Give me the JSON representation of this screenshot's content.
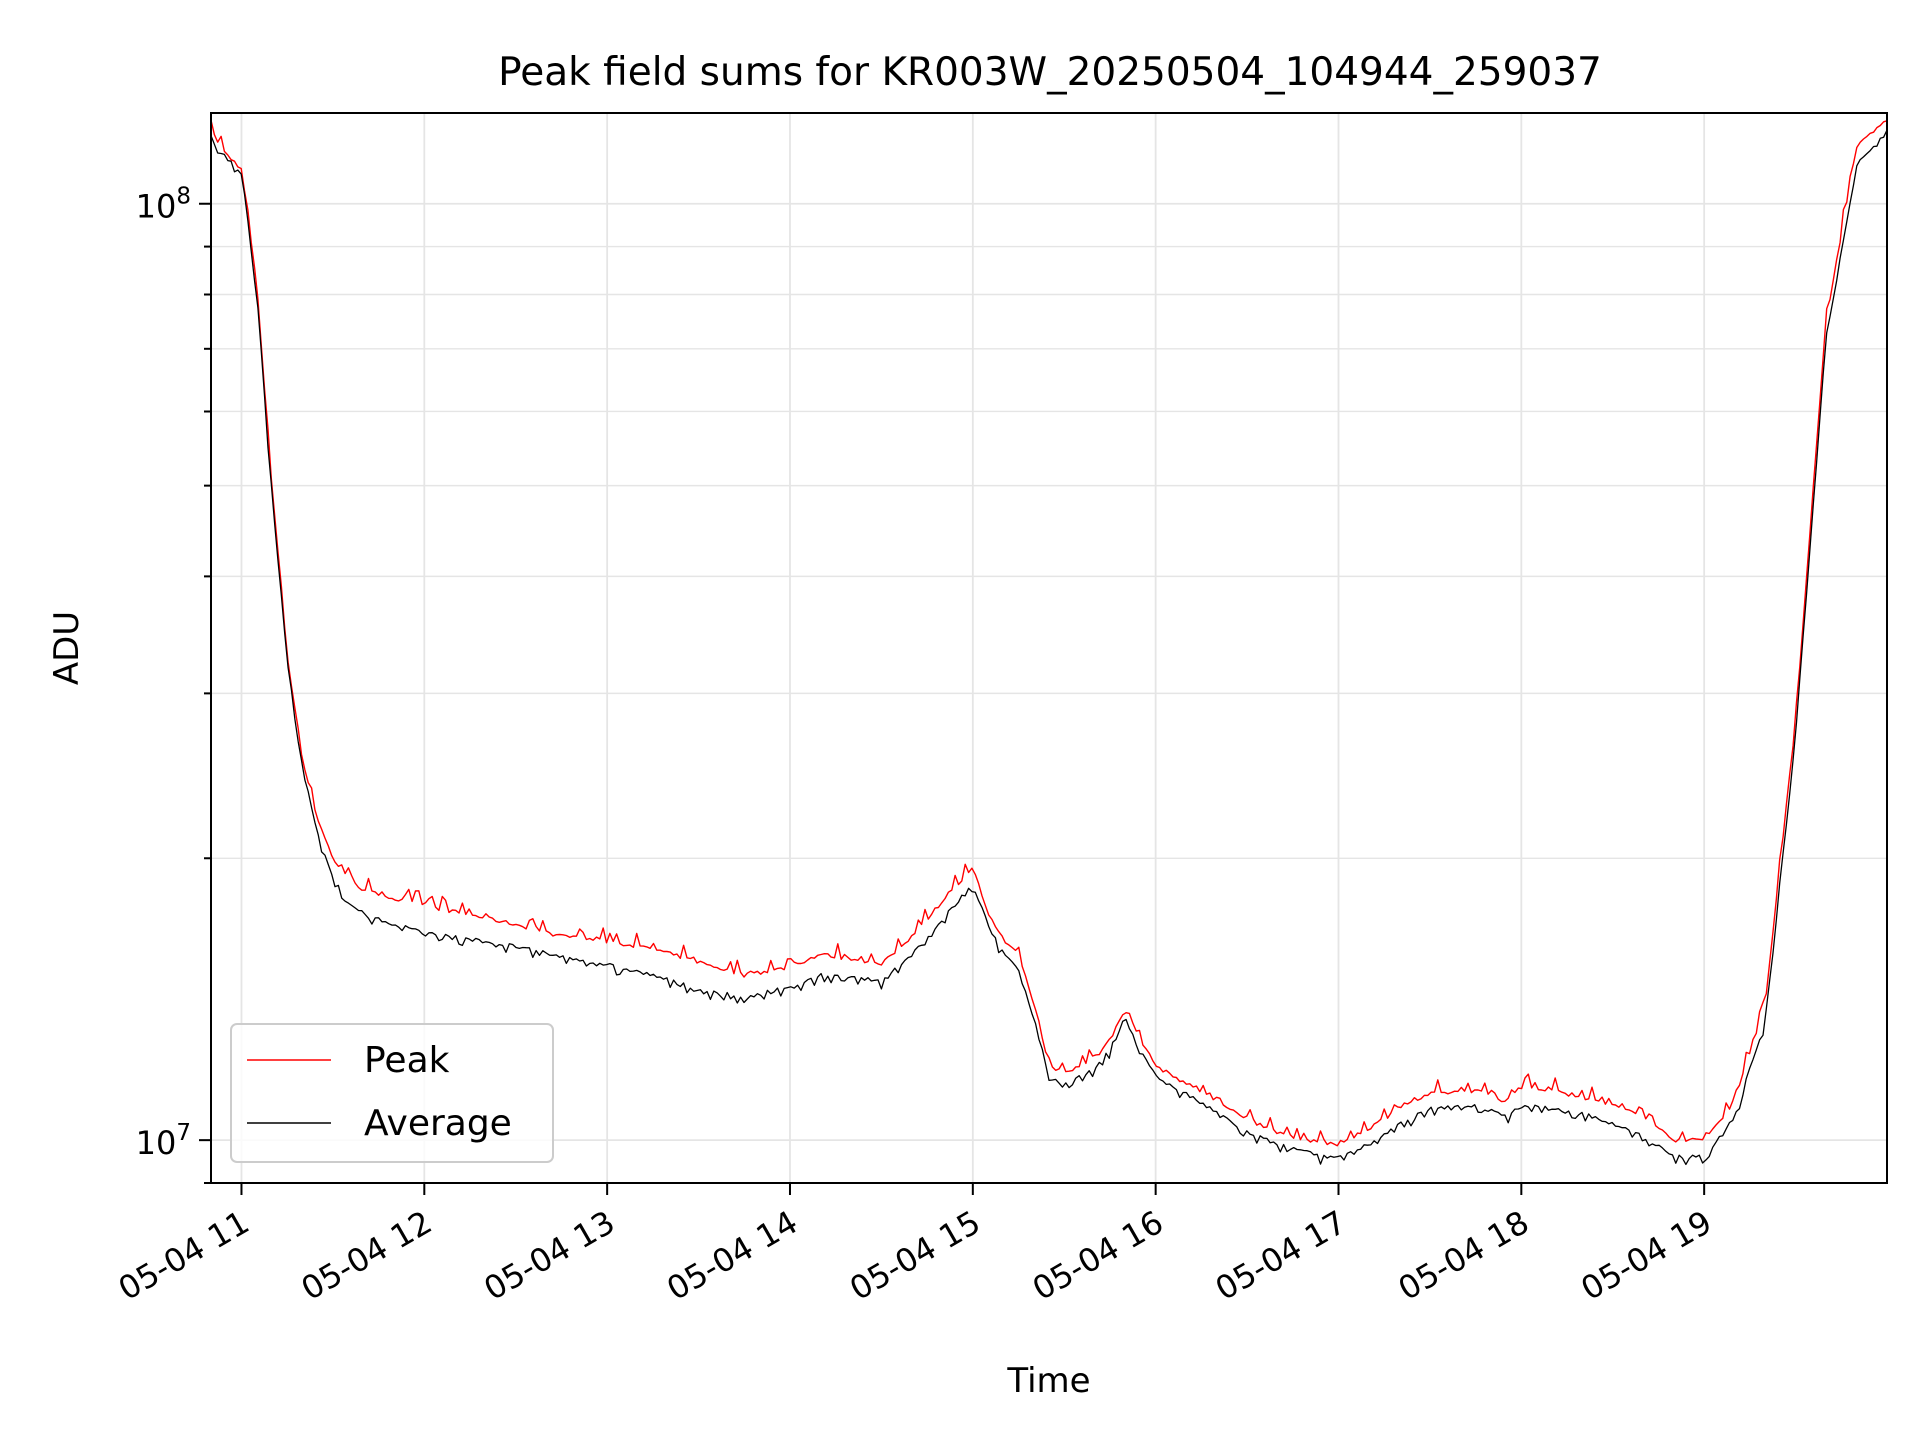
{
  "chart_data": {
    "type": "line",
    "title": "Peak field sums for KR003W_20250504_104944_259037",
    "xlabel": "Time",
    "ylabel": "ADU",
    "y_scale": "log",
    "ylim": [
      9000000,
      125000000
    ],
    "xlim": [
      "05-04 10:50",
      "05-04 20:00"
    ],
    "grid": true,
    "legend_position": "lower-left",
    "x_ticks": [
      "05-04 11",
      "05-04 12",
      "05-04 13",
      "05-04 14",
      "05-04 15",
      "05-04 16",
      "05-04 17",
      "05-04 18",
      "05-04 19"
    ],
    "y_ticks": [
      {
        "base": "10",
        "exp": "7",
        "value": 10000000
      },
      {
        "base": "10",
        "exp": "8",
        "value": 100000000
      }
    ],
    "x_tick_format": "MM-DD HH",
    "series": [
      {
        "name": "Peak",
        "color": "#ff0000",
        "x": [
          "05-04 10:50",
          "05-04 10:55",
          "05-04 11:00",
          "05-04 11:05",
          "05-04 11:10",
          "05-04 11:15",
          "05-04 11:20",
          "05-04 11:25",
          "05-04 11:30",
          "05-04 11:35",
          "05-04 11:40",
          "05-04 11:45",
          "05-04 11:50",
          "05-04 12:00",
          "05-04 12:15",
          "05-04 12:30",
          "05-04 12:45",
          "05-04 13:00",
          "05-04 13:15",
          "05-04 13:30",
          "05-04 13:45",
          "05-04 14:00",
          "05-04 14:10",
          "05-04 14:20",
          "05-04 14:30",
          "05-04 14:40",
          "05-04 14:50",
          "05-04 15:00",
          "05-04 15:05",
          "05-04 15:10",
          "05-04 15:15",
          "05-04 15:20",
          "05-04 15:25",
          "05-04 15:30",
          "05-04 15:40",
          "05-04 15:45",
          "05-04 15:50",
          "05-04 15:55",
          "05-04 16:00",
          "05-04 16:10",
          "05-04 16:20",
          "05-04 16:30",
          "05-04 16:40",
          "05-04 16:50",
          "05-04 16:55",
          "05-04 17:00",
          "05-04 17:10",
          "05-04 17:20",
          "05-04 17:30",
          "05-04 17:45",
          "05-04 17:55",
          "05-04 18:00",
          "05-04 18:10",
          "05-04 18:20",
          "05-04 18:30",
          "05-04 18:40",
          "05-04 18:50",
          "05-04 19:00",
          "05-04 19:10",
          "05-04 19:20",
          "05-04 19:30",
          "05-04 19:40",
          "05-04 19:50",
          "05-04 20:00"
        ],
        "values": [
          119000000,
          113000000,
          109000000,
          82000000,
          50000000,
          33000000,
          25500000,
          22000000,
          20000000,
          19000000,
          18500000,
          18300000,
          18100000,
          17800000,
          17400000,
          17000000,
          16500000,
          16300000,
          16000000,
          15500000,
          15000000,
          15300000,
          15800000,
          15600000,
          15400000,
          16500000,
          18000000,
          19500000,
          17500000,
          16300000,
          15800000,
          14000000,
          12000000,
          11800000,
          12200000,
          12800000,
          13800000,
          12800000,
          12000000,
          11500000,
          11000000,
          10500000,
          10200000,
          10000000,
          9900000,
          9900000,
          10300000,
          10800000,
          11200000,
          11300000,
          11000000,
          11400000,
          11300000,
          11100000,
          10900000,
          10600000,
          10000000,
          10000000,
          11000000,
          14000000,
          28000000,
          75000000,
          115000000,
          123000000
        ]
      },
      {
        "name": "Average",
        "color": "#000000",
        "x": [
          "05-04 10:50",
          "05-04 10:55",
          "05-04 11:00",
          "05-04 11:05",
          "05-04 11:10",
          "05-04 11:15",
          "05-04 11:20",
          "05-04 11:25",
          "05-04 11:30",
          "05-04 11:35",
          "05-04 11:40",
          "05-04 11:45",
          "05-04 11:50",
          "05-04 12:00",
          "05-04 12:15",
          "05-04 12:30",
          "05-04 12:45",
          "05-04 13:00",
          "05-04 13:15",
          "05-04 13:30",
          "05-04 13:45",
          "05-04 14:00",
          "05-04 14:10",
          "05-04 14:20",
          "05-04 14:30",
          "05-04 14:40",
          "05-04 14:50",
          "05-04 15:00",
          "05-04 15:05",
          "05-04 15:10",
          "05-04 15:15",
          "05-04 15:20",
          "05-04 15:25",
          "05-04 15:30",
          "05-04 15:40",
          "05-04 15:45",
          "05-04 15:50",
          "05-04 15:55",
          "05-04 16:00",
          "05-04 16:10",
          "05-04 16:20",
          "05-04 16:30",
          "05-04 16:40",
          "05-04 16:50",
          "05-04 16:55",
          "05-04 17:00",
          "05-04 17:10",
          "05-04 17:20",
          "05-04 17:30",
          "05-04 17:45",
          "05-04 17:55",
          "05-04 18:00",
          "05-04 18:10",
          "05-04 18:20",
          "05-04 18:30",
          "05-04 18:40",
          "05-04 18:50",
          "05-04 19:00",
          "05-04 19:10",
          "05-04 19:20",
          "05-04 19:30",
          "05-04 19:40",
          "05-04 19:50",
          "05-04 20:00"
        ],
        "values": [
          118000000,
          112000000,
          108000000,
          81000000,
          49000000,
          32500000,
          25000000,
          21200000,
          19000000,
          18000000,
          17500000,
          17200000,
          17000000,
          16700000,
          16400000,
          16100000,
          15700000,
          15400000,
          15000000,
          14500000,
          14200000,
          14600000,
          15000000,
          14900000,
          14800000,
          15800000,
          17200000,
          18800000,
          17000000,
          15800000,
          15300000,
          13500000,
          11700000,
          11500000,
          11900000,
          12500000,
          13500000,
          12500000,
          11700000,
          11200000,
          10700000,
          10200000,
          9900000,
          9700000,
          9600000,
          9600000,
          9900000,
          10400000,
          10800000,
          10900000,
          10600000,
          10900000,
          10800000,
          10700000,
          10400000,
          10100000,
          9600000,
          9600000,
          10600000,
          13400000,
          27000000,
          72000000,
          110000000,
          120000000
        ]
      }
    ]
  }
}
